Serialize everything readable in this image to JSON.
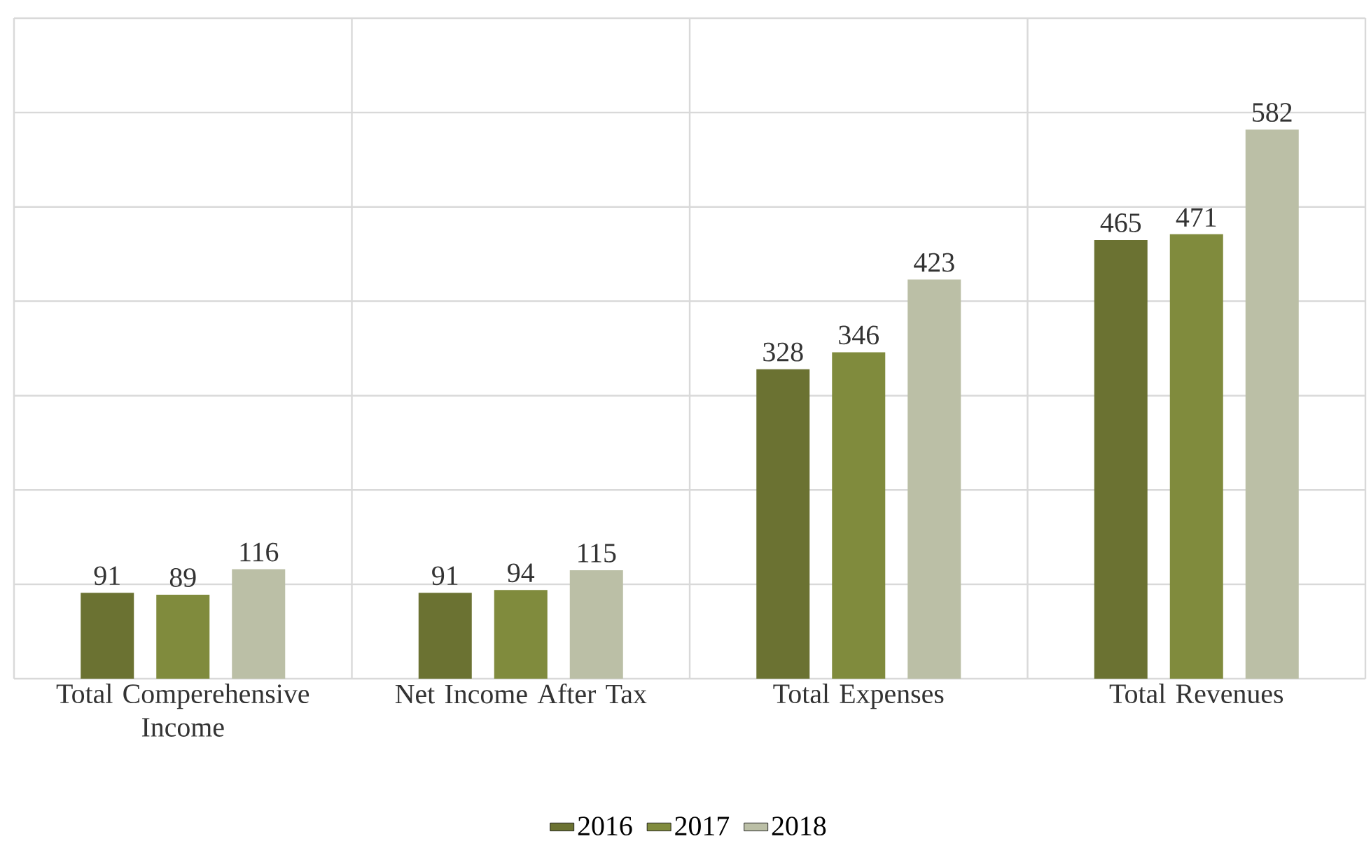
{
  "chart_data": {
    "type": "bar",
    "categories": [
      "Total Comperehensive Income",
      "Net Income After Tax",
      "Total Expenses",
      "Total Revenues"
    ],
    "series": [
      {
        "name": "2016",
        "color": "#6b7232",
        "values": [
          91,
          91,
          328,
          465
        ]
      },
      {
        "name": "2017",
        "color": "#808b3d",
        "values": [
          89,
          94,
          346,
          471
        ]
      },
      {
        "name": "2018",
        "color": "#bbbfa6",
        "values": [
          116,
          115,
          423,
          582
        ]
      }
    ],
    "ylim": [
      0,
      700
    ],
    "yticks": [
      0,
      100,
      200,
      300,
      400,
      500,
      600,
      700
    ],
    "tick_labels": "x",
    "grid": true,
    "legend": "bottom",
    "data_labels": true
  }
}
